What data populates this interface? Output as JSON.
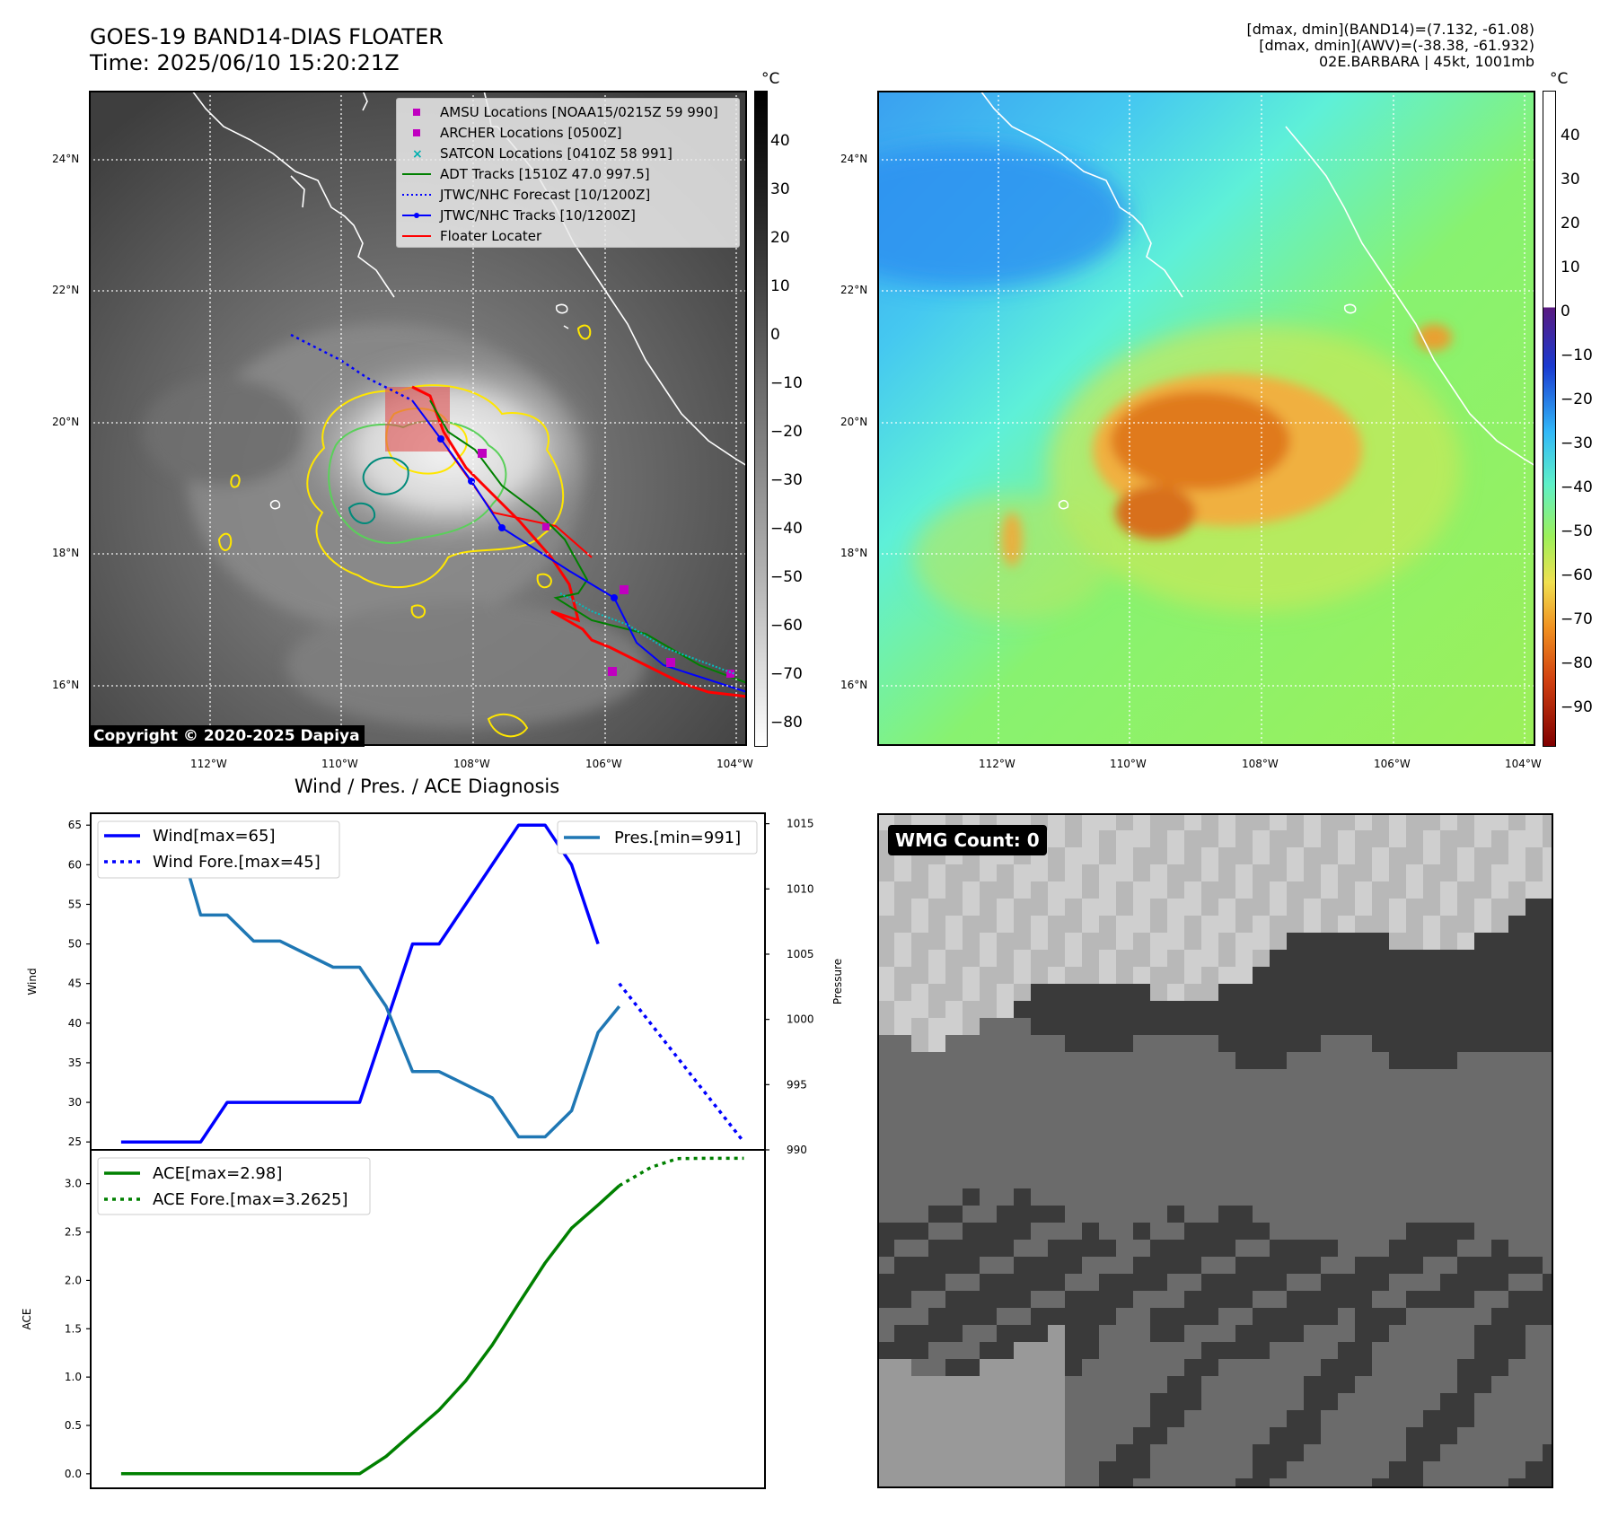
{
  "header": {
    "title_line1": "GOES-19 BAND14-DIAS FLOATER",
    "title_line2": "Time: 2025/06/10 15:20:21Z",
    "info_line1": "[dmax, dmin](BAND14)=(7.132, -61.08)",
    "info_line2": "[dmax, dmin](AWV)=(-38.38, -61.932)",
    "info_line3": "02E.BARBARA | 45kt, 1001mb"
  },
  "maps": {
    "lat_ticks": [
      "24°N",
      "22°N",
      "20°N",
      "18°N",
      "16°N"
    ],
    "lon_ticks": [
      "112°W",
      "110°W",
      "108°W",
      "106°W",
      "104°W"
    ],
    "copyright": "Copyright © 2020-2025 Dapiya",
    "legend": [
      {
        "label": "AMSU Locations [NOAA15/0215Z 59 990]",
        "color": "#c000c0",
        "kind": "square"
      },
      {
        "label": "ARCHER Locations [0500Z]",
        "color": "#c000c0",
        "kind": "square"
      },
      {
        "label": "SATCON Locations [0410Z 58 991]",
        "color": "#00b0b0",
        "kind": "x"
      },
      {
        "label": "ADT Tracks [1510Z 47.0 997.5]",
        "color": "#008000",
        "kind": "line"
      },
      {
        "label": "JTWC/NHC Forecast [10/1200Z]",
        "color": "#0000ff",
        "kind": "dotted"
      },
      {
        "label": "JTWC/NHC Tracks [10/1200Z]",
        "color": "#0000ff",
        "kind": "line-dot"
      },
      {
        "label": "Floater Locater",
        "color": "#ff0000",
        "kind": "line"
      }
    ],
    "colorbar_unit": "°C",
    "ir_colorbar_ticks": [
      "40",
      "30",
      "20",
      "10",
      "0",
      "−10",
      "−20",
      "−30",
      "−40",
      "−50",
      "−60",
      "−70",
      "−80"
    ],
    "awv_colorbar_ticks": [
      "40",
      "30",
      "20",
      "10",
      "0",
      "−10",
      "−20",
      "−30",
      "−40",
      "−50",
      "−60",
      "−70",
      "−80",
      "−90"
    ]
  },
  "diagnosis": {
    "title": "Wind / Pres. / ACE Diagnosis",
    "wmg_label": "WMG Count: 0"
  },
  "chart_data": [
    {
      "type": "line",
      "title": "Wind / Pres. / ACE Diagnosis",
      "ylabel": "Wind",
      "y2label": "Pressure",
      "ylim": [
        24,
        66.5
      ],
      "y2lim": [
        990,
        1015.8
      ],
      "yticks": [
        "25",
        "30",
        "35",
        "40",
        "45",
        "50",
        "55",
        "60",
        "65"
      ],
      "y2ticks": [
        "990",
        "995",
        "1000",
        "1005",
        "1010",
        "1015"
      ],
      "series": [
        {
          "name": "Wind[max=65]",
          "color": "#0000ff",
          "style": "solid",
          "axis": "left",
          "x": [
            0,
            1,
            2,
            3,
            4,
            5,
            6,
            7,
            8,
            9,
            10,
            11,
            12,
            13,
            14,
            15,
            16,
            17,
            18
          ],
          "values": [
            25,
            25,
            25,
            25,
            30,
            30,
            30,
            30,
            30,
            30,
            40,
            50,
            50,
            55,
            60,
            65,
            65,
            60,
            50
          ]
        },
        {
          "name": "Wind Fore.[max=45]",
          "color": "#0000ff",
          "style": "dotted",
          "axis": "left",
          "x": [
            18.8,
            23.5
          ],
          "values": [
            45,
            25
          ]
        },
        {
          "name": "Pres.[min=991]",
          "color": "#1f77b4",
          "style": "solid",
          "axis": "right",
          "x": [
            0,
            1,
            2,
            3,
            4,
            5,
            6,
            7,
            8,
            9,
            10,
            11,
            12,
            13,
            14,
            15,
            16,
            17,
            18,
            18.8
          ],
          "values": [
            1015,
            1015,
            1015,
            1008,
            1008,
            1006,
            1006,
            1005,
            1004,
            1004,
            1001,
            996,
            996,
            995,
            994,
            991,
            991,
            993,
            999,
            1001
          ]
        }
      ]
    },
    {
      "type": "line",
      "ylabel": "ACE",
      "ylim": [
        -0.15,
        3.35
      ],
      "yticks": [
        "0.0",
        "0.5",
        "1.0",
        "1.5",
        "2.0",
        "2.5",
        "3.0"
      ],
      "series": [
        {
          "name": "ACE[max=2.98]",
          "color": "#008000",
          "style": "solid",
          "x": [
            0,
            1,
            2,
            3,
            4,
            5,
            6,
            7,
            8,
            9,
            10,
            11,
            12,
            13,
            14,
            15,
            16,
            17,
            18,
            18.8
          ],
          "values": [
            0,
            0,
            0,
            0,
            0,
            0,
            0,
            0,
            0,
            0,
            0.18,
            0.42,
            0.66,
            0.96,
            1.33,
            1.76,
            2.18,
            2.54,
            2.78,
            2.98
          ]
        },
        {
          "name": "ACE Fore.[max=3.2625]",
          "color": "#008000",
          "style": "dotted",
          "x": [
            18.8,
            20,
            21,
            22,
            23.5
          ],
          "values": [
            2.98,
            3.17,
            3.26,
            3.2625,
            3.2625
          ]
        }
      ]
    }
  ]
}
